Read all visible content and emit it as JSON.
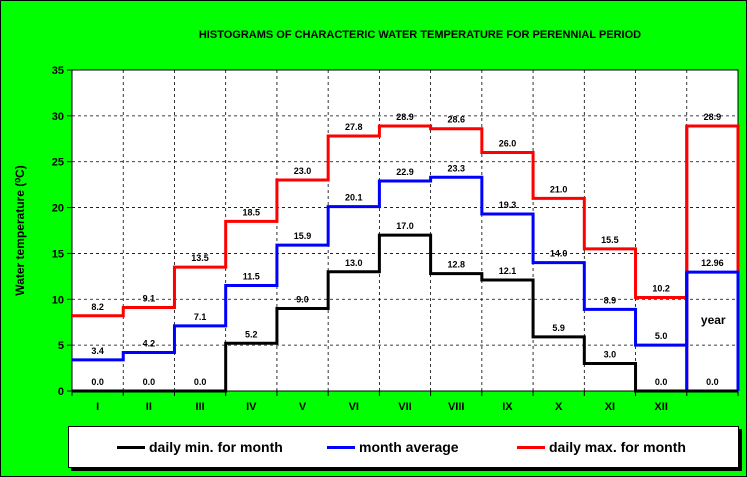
{
  "chart_data": {
    "type": "line",
    "title": "HISTOGRAMS  OF  CHARACTERIC  WATER  TEMPERATURE  FOR  PERENNIAL  PERIOD",
    "ylabel": "Water temperature (⁰C)",
    "xlabel": "",
    "ylim": [
      0,
      35
    ],
    "yticks": [
      0,
      5,
      10,
      15,
      20,
      25,
      30,
      35
    ],
    "categories": [
      "I",
      "II",
      "III",
      "IV",
      "V",
      "VI",
      "VII",
      "VIII",
      "IX",
      "X",
      "XI",
      "XII",
      ""
    ],
    "extra_label": "year",
    "series": [
      {
        "name": "daily  min.  for month",
        "color": "#000000",
        "values": [
          0.0,
          0.0,
          0.0,
          5.2,
          9.0,
          13.0,
          17.0,
          12.8,
          12.1,
          5.9,
          3.0,
          0.0,
          0.0
        ],
        "labels": [
          "0.0",
          "0.0",
          "0.0",
          "5.2",
          "9.0",
          "13.0",
          "17.0",
          "12.8",
          "12.1",
          "5.9",
          "3.0",
          "0.0",
          "0.0"
        ]
      },
      {
        "name": "month average",
        "color": "#0000ff",
        "values": [
          3.4,
          4.2,
          7.1,
          11.5,
          15.9,
          20.1,
          22.9,
          23.3,
          19.3,
          14.0,
          8.9,
          5.0,
          12.96
        ],
        "labels": [
          "3.4",
          "4.2",
          "7.1",
          "11.5",
          "15.9",
          "20.1",
          "22.9",
          "23.3",
          "19.3",
          "14.0",
          "8.9",
          "5.0",
          "12.96"
        ]
      },
      {
        "name": "daily  max.  for month",
        "color": "#ff0000",
        "values": [
          8.2,
          9.1,
          13.5,
          18.5,
          23.0,
          27.8,
          28.9,
          28.6,
          26.0,
          21.0,
          15.5,
          10.2,
          28.9
        ],
        "labels": [
          "8.2",
          "9.1",
          "13.5",
          "18.5",
          "23.0",
          "27.8",
          "28.9",
          "28.6",
          "26.0",
          "21.0",
          "15.5",
          "10.2",
          "28.9"
        ]
      }
    ],
    "legend_position": "bottom"
  }
}
